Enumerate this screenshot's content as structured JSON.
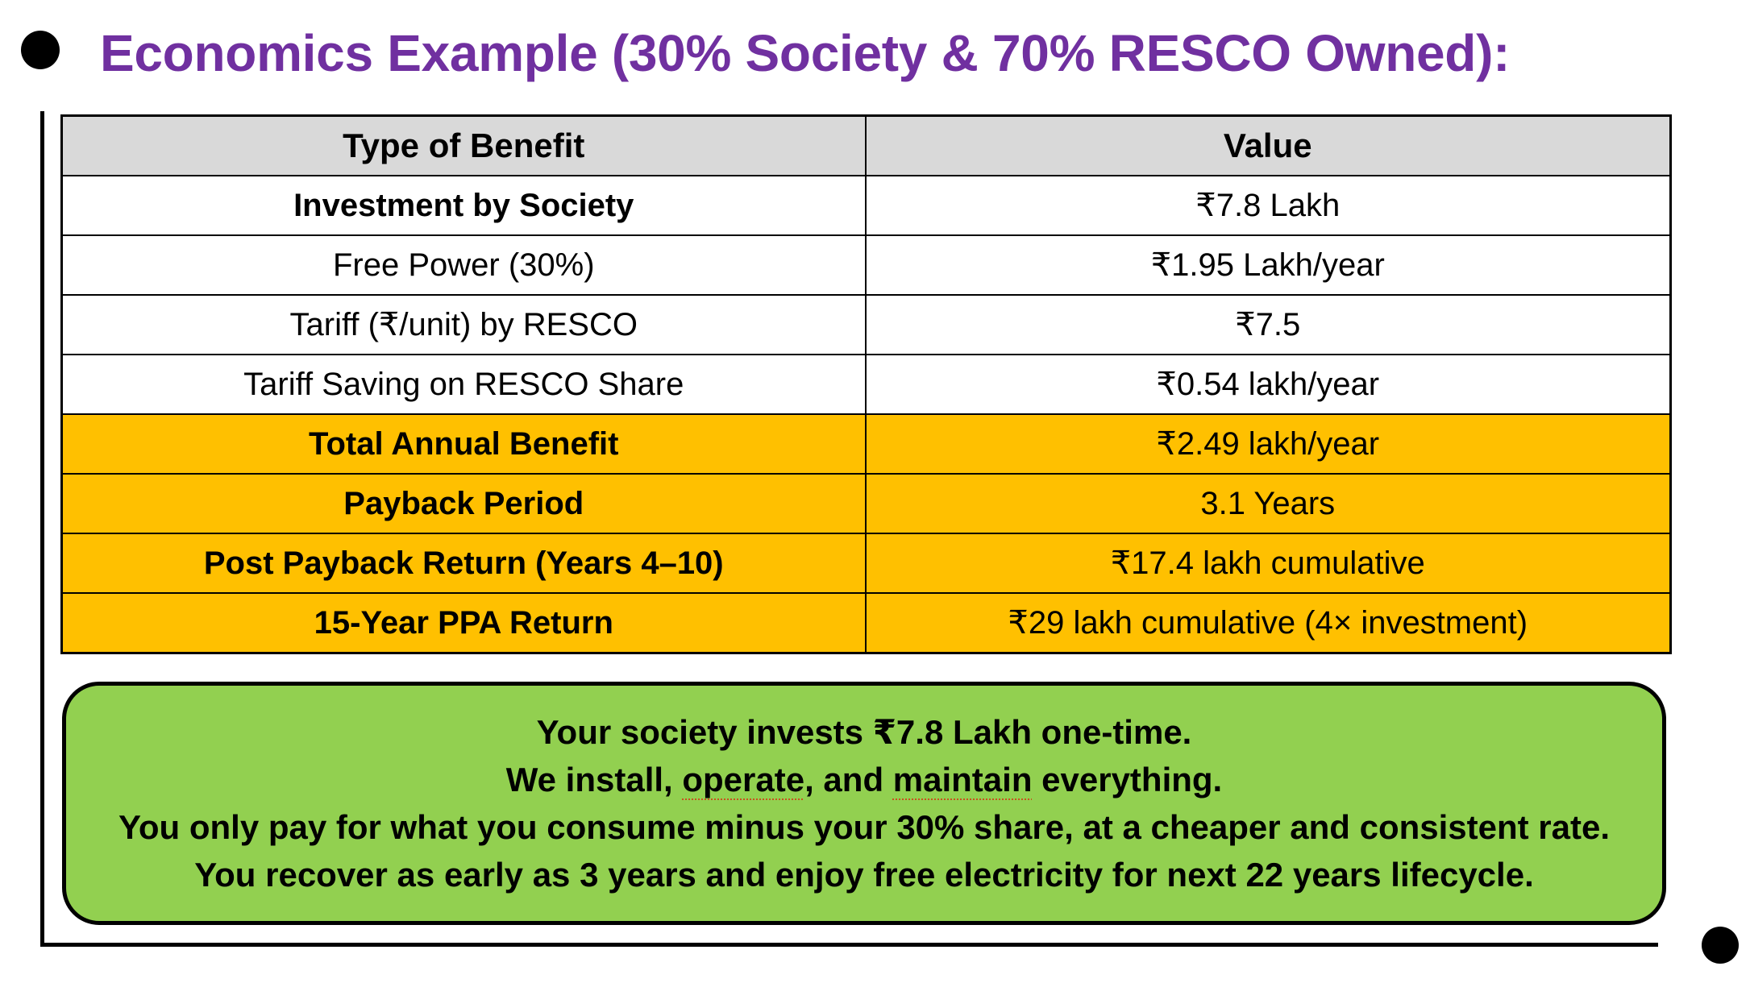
{
  "slide": {
    "title": "Economics Example (30% Society & 70% RESCO Owned):"
  },
  "table": {
    "headers": {
      "type": "Type of Benefit",
      "value": "Value"
    },
    "rows": [
      {
        "label": "Investment by Society",
        "value": "₹7.8 Lakh",
        "label_bold": true,
        "highlighted": false
      },
      {
        "label": "Free Power (30%)",
        "value": "₹1.95 Lakh/year",
        "label_bold": false,
        "highlighted": false
      },
      {
        "label": "Tariff (₹/unit) by RESCO",
        "value": "₹7.5",
        "label_bold": false,
        "highlighted": false
      },
      {
        "label": "Tariff Saving on RESCO Share",
        "value": "₹0.54 lakh/year",
        "label_bold": false,
        "highlighted": false
      },
      {
        "label": "Total Annual Benefit",
        "value": "₹2.49 lakh/year",
        "label_bold": true,
        "highlighted": true
      },
      {
        "label": "Payback Period",
        "value": "3.1 Years",
        "label_bold": true,
        "highlighted": true
      },
      {
        "label": "Post Payback Return (Years 4–10)",
        "value": "₹17.4 lakh cumulative",
        "label_bold": true,
        "highlighted": true
      },
      {
        "label": "15-Year PPA Return",
        "value": "₹29 lakh cumulative (4× investment)",
        "label_bold": true,
        "highlighted": true
      }
    ]
  },
  "callout": {
    "line1": "Your society invests ₹7.8 Lakh one-time.",
    "line2_part1": "We install, ",
    "line2_word1": "operate",
    "line2_part2": ", and ",
    "line2_word2": "maintain",
    "line2_part3": " everything.",
    "line3": "You only pay for what you consume minus your 30% share, at a cheaper and consistent rate.",
    "line4": "You recover as early as 3 years and enjoy free electricity for next 22 years lifecycle."
  },
  "colors": {
    "title": "#7030A0",
    "header_fill": "#D9D9D9",
    "highlight_fill": "#FFC000",
    "callout_fill": "#92D050",
    "spellcheck_underline": "#C9511F"
  }
}
